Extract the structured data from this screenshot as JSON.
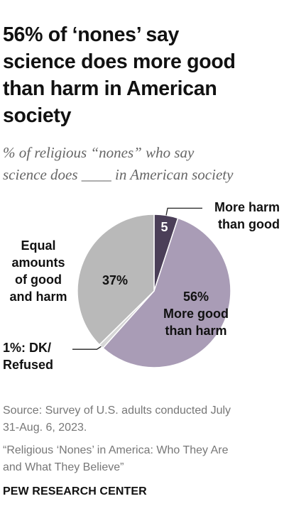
{
  "title_lines": [
    "56% of ‘nones’ say",
    "science does more good",
    "than harm in American",
    "society"
  ],
  "subtitle_lines": [
    "% of religious “nones” who say",
    "science does ____ in American society"
  ],
  "source_lines": [
    "Source: Survey of U.S. adults conducted July",
    "31-Aug. 6, 2023."
  ],
  "report_lines": [
    "“Religious ‘Nones’ in America: Who They Are",
    "and What They Believe”"
  ],
  "org": "PEW RESEARCH CENTER",
  "colors": {
    "more_harm": "#4b3f58",
    "more_good": "#a99cb6",
    "dk_refused": "#d6d6d6",
    "equal": "#b9b9b9",
    "slice_text_dark": "#111111",
    "slice_text_light": "#ffffff"
  },
  "chart_data": {
    "type": "pie",
    "start": "12 o'clock, clockwise",
    "slices": [
      {
        "key": "more_harm",
        "value": 5,
        "inside_label": "5",
        "outside_label_lines": [
          "More harm",
          "than good"
        ]
      },
      {
        "key": "more_good",
        "value": 56,
        "inside_label_lines": [
          "56%",
          "More good",
          "than harm"
        ]
      },
      {
        "key": "dk_refused",
        "value": 1,
        "outside_label_lines": [
          "1%: DK/",
          "Refused"
        ]
      },
      {
        "key": "equal",
        "value": 37,
        "inside_label": "37%",
        "outside_label_lines": [
          "Equal",
          "amounts",
          "of good",
          "and harm"
        ]
      }
    ]
  }
}
